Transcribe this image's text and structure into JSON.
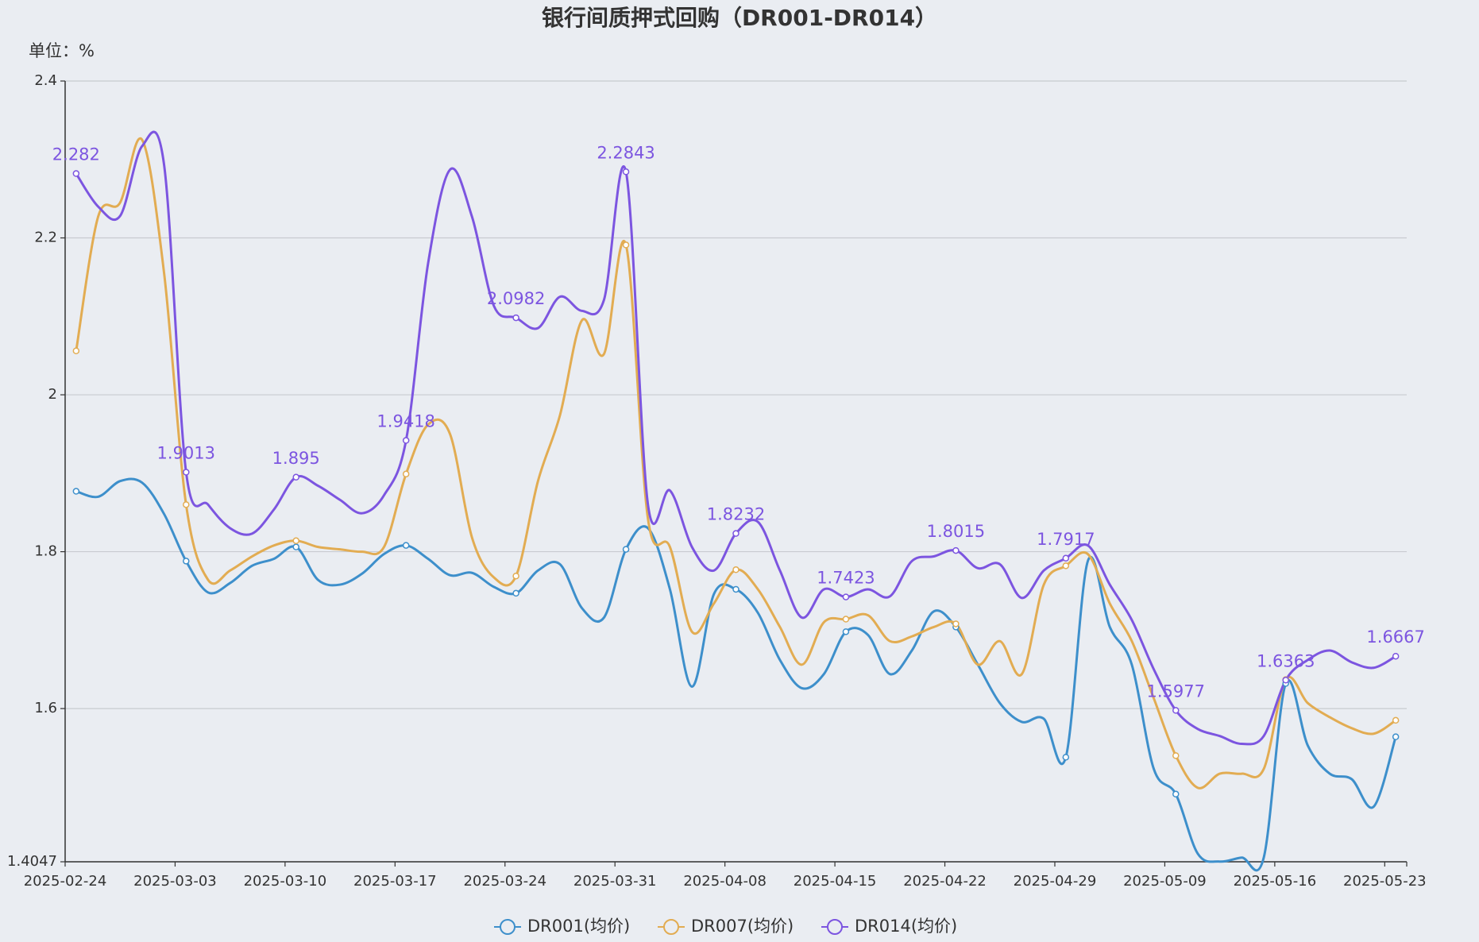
{
  "chart_data": {
    "type": "line",
    "title": "银行间质押式回购（DR001-DR014）",
    "y_axis_label": "单位：%",
    "categories": [
      "2025-02-24",
      null,
      null,
      null,
      null,
      "2025-03-03",
      null,
      null,
      null,
      null,
      "2025-03-10",
      null,
      null,
      null,
      null,
      "2025-03-17",
      null,
      null,
      null,
      null,
      "2025-03-24",
      null,
      null,
      null,
      null,
      "2025-03-31",
      null,
      null,
      null,
      null,
      "2025-04-08",
      null,
      null,
      null,
      null,
      "2025-04-15",
      null,
      null,
      null,
      null,
      "2025-04-22",
      null,
      null,
      null,
      null,
      "2025-04-29",
      null,
      null,
      null,
      null,
      "2025-05-09",
      null,
      null,
      null,
      null,
      "2025-05-16",
      null,
      null,
      null,
      null,
      "2025-05-23"
    ],
    "ylim": [
      1.4047,
      2.4
    ],
    "yticks": [
      1.4047,
      1.6,
      1.8,
      2,
      2.2,
      2.4
    ],
    "grid": true,
    "smooth": true,
    "legend": "bottom",
    "series": [
      {
        "name": "DR001(均价)",
        "color": "#3d8fcb",
        "values": [
          1.877,
          1.87,
          1.89,
          1.888,
          1.848,
          1.788,
          1.748,
          1.76,
          1.782,
          1.791,
          1.806,
          1.764,
          1.758,
          1.772,
          1.797,
          1.808,
          1.791,
          1.77,
          1.773,
          1.755,
          1.747,
          1.776,
          1.784,
          1.728,
          1.716,
          1.803,
          1.83,
          1.752,
          1.628,
          1.746,
          1.752,
          1.722,
          1.662,
          1.626,
          1.644,
          1.698,
          1.694,
          1.644,
          1.674,
          1.724,
          1.704,
          1.656,
          1.607,
          1.583,
          1.587,
          1.538,
          1.788,
          1.704,
          1.656,
          1.523,
          1.491,
          1.415,
          1.405,
          1.41,
          1.41,
          1.632,
          1.553,
          1.517,
          1.51,
          1.475,
          1.564
        ]
      },
      {
        "name": "DR007(均价)",
        "color": "#e2ac52",
        "values": [
          2.056,
          2.227,
          2.245,
          2.325,
          2.155,
          1.86,
          1.764,
          1.776,
          1.794,
          1.808,
          1.814,
          1.806,
          1.803,
          1.8,
          1.806,
          1.899,
          1.962,
          1.95,
          1.818,
          1.767,
          1.769,
          1.89,
          1.974,
          2.095,
          2.052,
          2.191,
          1.842,
          1.806,
          1.698,
          1.734,
          1.777,
          1.752,
          1.704,
          1.656,
          1.71,
          1.714,
          1.719,
          1.686,
          1.692,
          1.704,
          1.708,
          1.656,
          1.686,
          1.644,
          1.758,
          1.782,
          1.797,
          1.734,
          1.686,
          1.613,
          1.54,
          1.499,
          1.517,
          1.517,
          1.523,
          1.637,
          1.607,
          1.589,
          1.575,
          1.568,
          1.585
        ]
      },
      {
        "name": "DR014(均价)",
        "color": "#7c55e0",
        "values": [
          2.282,
          2.24,
          2.228,
          2.317,
          2.293,
          1.9013,
          1.86,
          1.83,
          1.823,
          1.854,
          1.895,
          1.884,
          1.866,
          1.849,
          1.872,
          1.9418,
          2.167,
          2.287,
          2.227,
          2.113,
          2.0982,
          2.085,
          2.125,
          2.107,
          2.121,
          2.2843,
          1.86,
          1.878,
          1.806,
          1.776,
          1.8232,
          1.838,
          1.776,
          1.716,
          1.752,
          1.7423,
          1.752,
          1.743,
          1.788,
          1.794,
          1.8015,
          1.779,
          1.784,
          1.741,
          1.776,
          1.7917,
          1.808,
          1.758,
          1.713,
          1.65,
          1.5977,
          1.574,
          1.565,
          1.555,
          1.565,
          1.6363,
          1.662,
          1.674,
          1.659,
          1.652,
          1.6667
        ],
        "value_labels": [
          "2.282",
          null,
          null,
          null,
          null,
          "1.9013",
          null,
          null,
          null,
          null,
          "1.895",
          null,
          null,
          null,
          null,
          "1.9418",
          null,
          null,
          null,
          null,
          "2.0982",
          null,
          null,
          null,
          null,
          "2.2843",
          null,
          null,
          null,
          null,
          "1.8232",
          null,
          null,
          null,
          null,
          "1.7423",
          null,
          null,
          null,
          null,
          "1.8015",
          null,
          null,
          null,
          null,
          "1.7917",
          null,
          null,
          null,
          null,
          "1.5977",
          null,
          null,
          null,
          null,
          "1.6363",
          null,
          null,
          null,
          null,
          "1.6667"
        ]
      }
    ]
  }
}
